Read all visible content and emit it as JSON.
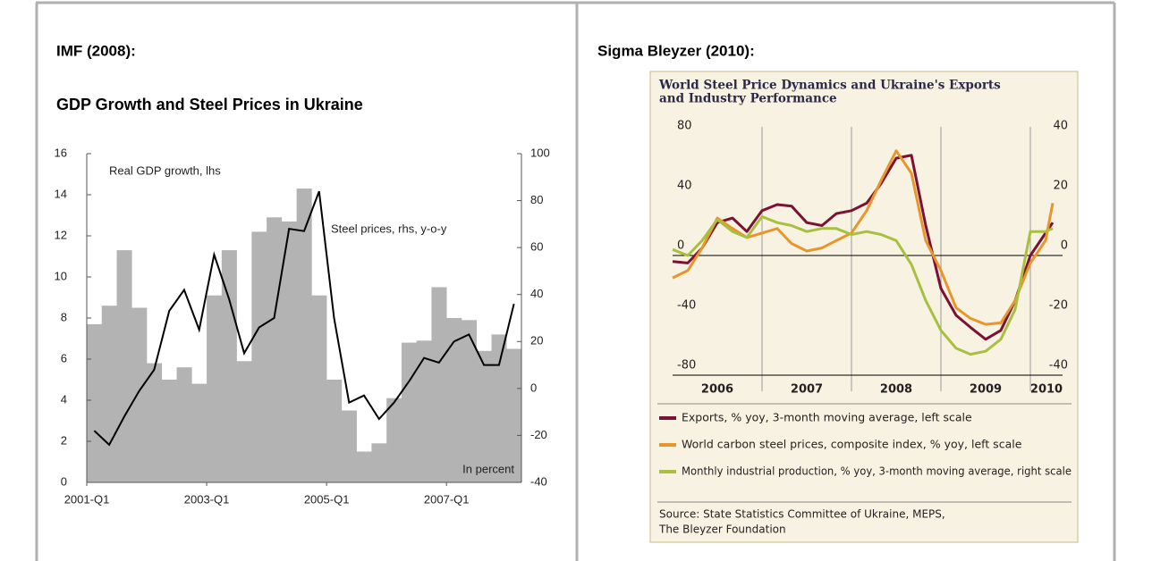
{
  "headings": [
    "IMF (2008):",
    "Sigma Bleyzer (2010):"
  ],
  "chart_data": [
    {
      "type": "bar",
      "title": "GDP Growth and Steel Prices in Ukraine",
      "categories": [
        "2001-Q1",
        null,
        null,
        null,
        null,
        null,
        null,
        null,
        "2003-Q1",
        null,
        null,
        null,
        null,
        null,
        null,
        null,
        "2005-Q1",
        null,
        null,
        null,
        null,
        null,
        null,
        null,
        "2007-Q1",
        null,
        null,
        null,
        null
      ],
      "series": [
        {
          "color": "#b3b3b3",
          "values": [
            7.7,
            8.6,
            11.3,
            8.5,
            5.8,
            5.0,
            5.6,
            4.8,
            9.1,
            11.3,
            5.9,
            12.2,
            12.9,
            12.7,
            14.3,
            9.1,
            5.0,
            3.5,
            1.5,
            1.9,
            4.1,
            6.8,
            6.9,
            9.5,
            8.0,
            7.9,
            6.4,
            7.2,
            6.5
          ]
        },
        {
          "type": "line",
          "axis": "y2",
          "color": "#000000",
          "values": [
            -18,
            -24,
            -12,
            -1,
            8,
            33,
            42,
            25,
            57,
            38,
            15,
            26,
            30,
            68,
            67,
            84,
            30,
            -6,
            -3,
            -13,
            -6,
            3,
            13,
            11,
            20,
            23,
            10,
            10,
            36
          ]
        }
      ],
      "ylim": [
        0,
        16
      ],
      "yticks": [
        0,
        2,
        4,
        6,
        8,
        10,
        12,
        14,
        16
      ],
      "y2lim": [
        -40,
        100
      ],
      "y2ticks": [
        -40,
        -20,
        0,
        20,
        40,
        60,
        80,
        100
      ],
      "annotations": [
        "Real GDP growth, lhs",
        "Steel prices, rhs, y-o-y",
        "In percent"
      ]
    },
    {
      "type": "line",
      "title_lines": [
        "World Steel Price Dynamics and Ukraine's Exports",
        "and Industry Performance"
      ],
      "x": [
        2006,
        2006.17,
        2006.33,
        2006.5,
        2006.67,
        2006.83,
        2007,
        2007.17,
        2007.33,
        2007.5,
        2007.67,
        2007.83,
        2008,
        2008.17,
        2008.33,
        2008.5,
        2008.67,
        2008.83,
        2009,
        2009.17,
        2009.33,
        2009.5,
        2009.67,
        2009.83,
        2010,
        2010.17,
        2010.25
      ],
      "xlim": [
        2006,
        2010.36
      ],
      "xticks": [
        2007,
        2008,
        2009,
        2010
      ],
      "year_labels": [
        "2006",
        "2007",
        "2008",
        "2009",
        "2010"
      ],
      "ylim": [
        -80,
        80
      ],
      "yticks": [
        -80,
        -40,
        0,
        40,
        80
      ],
      "y2lim": [
        -40,
        40
      ],
      "y2ticks": [
        -40,
        -20,
        0,
        20,
        40
      ],
      "series": [
        {
          "name": "Exports, % yoy, 3-month moving average, left scale",
          "color": "#7b1234",
          "values": [
            -4,
            -5,
            5,
            22,
            25,
            16,
            30,
            34,
            33,
            22,
            20,
            28,
            30,
            35,
            48,
            65,
            67,
            20,
            -22,
            -40,
            -48,
            -56,
            -50,
            -30,
            0,
            15,
            22
          ]
        },
        {
          "name": "World carbon steel prices, composite index, % yoy, left scale",
          "color": "#e8962c",
          "values": [
            -15,
            -10,
            5,
            25,
            18,
            12,
            15,
            18,
            8,
            3,
            5,
            10,
            15,
            30,
            50,
            70,
            55,
            10,
            -10,
            -35,
            -42,
            -46,
            -45,
            -30,
            -5,
            10,
            35
          ]
        },
        {
          "name": "Monthly industrial production, % yoy, 3-month moving average, right scale",
          "axis": "y2",
          "color": "#a8c040",
          "values": [
            2,
            0,
            5,
            12,
            8,
            6,
            13,
            11,
            10,
            8,
            9,
            9,
            7,
            8,
            7,
            5,
            -3,
            -15,
            -25,
            -31,
            -33,
            -32,
            -28,
            -18,
            8,
            8,
            9
          ]
        }
      ],
      "source_lines": [
        "Source: State Statistics Committee of Ukraine, MEPS,",
        "The Bleyzer Foundation"
      ]
    }
  ]
}
